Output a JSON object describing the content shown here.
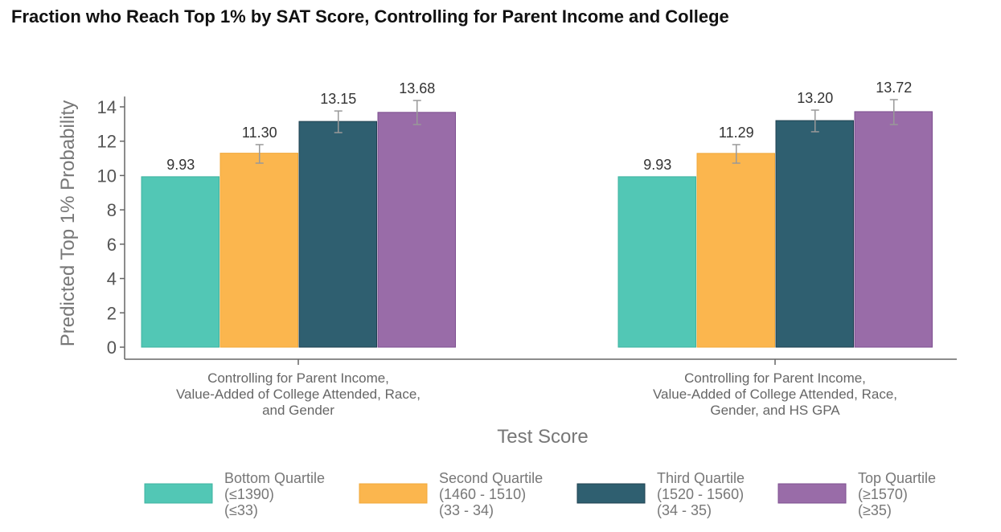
{
  "chart_data": {
    "type": "bar",
    "title": "Fraction who Reach Top 1% by SAT Score, Controlling for Parent Income and College",
    "xlabel": "Test Score",
    "ylabel": "Predicted Top 1% Probability",
    "ylim": [
      0,
      14.5
    ],
    "yticks": [
      0,
      2,
      4,
      6,
      8,
      10,
      12,
      14
    ],
    "grid": false,
    "legend_position": "bottom",
    "categories": [
      [
        "Controlling for Parent Income,",
        "Value-Added of College Attended, Race,",
        "and Gender"
      ],
      [
        "Controlling for Parent Income,",
        "Value-Added of College Attended, Race,",
        "Gender, and HS GPA"
      ]
    ],
    "series": [
      {
        "name": [
          "Bottom Quartile",
          "(≤1390)",
          "(≤33)"
        ],
        "color": "#52c7b5",
        "edge": "#3fb3a1",
        "values": [
          9.93,
          9.93
        ],
        "labels": [
          "9.93",
          "9.93"
        ],
        "err": [
          null,
          null
        ]
      },
      {
        "name": [
          "Second Quartile",
          "(1460 - 1510)",
          "(33 - 34)"
        ],
        "color": "#fbb64e",
        "edge": "#f0a83a",
        "values": [
          11.3,
          11.29
        ],
        "labels": [
          "11.30",
          "11.29"
        ],
        "err": [
          [
            10.72,
            11.8
          ],
          [
            10.72,
            11.8
          ]
        ]
      },
      {
        "name": [
          "Third Quartile",
          "(1520 - 1560)",
          "(34 - 35)"
        ],
        "color": "#2f5f70",
        "edge": "#1f4050",
        "values": [
          13.15,
          13.2
        ],
        "labels": [
          "13.15",
          "13.20"
        ],
        "err": [
          [
            12.5,
            13.76
          ],
          [
            12.55,
            13.81
          ]
        ]
      },
      {
        "name": [
          "Top Quartile",
          "(≥1570)",
          "(≥35)"
        ],
        "color": "#996ca8",
        "edge": "#7d4f8f",
        "values": [
          13.68,
          13.72
        ],
        "labels": [
          "13.68",
          "13.72"
        ],
        "err": [
          [
            12.97,
            14.37
          ],
          [
            12.97,
            14.42
          ]
        ]
      }
    ]
  }
}
